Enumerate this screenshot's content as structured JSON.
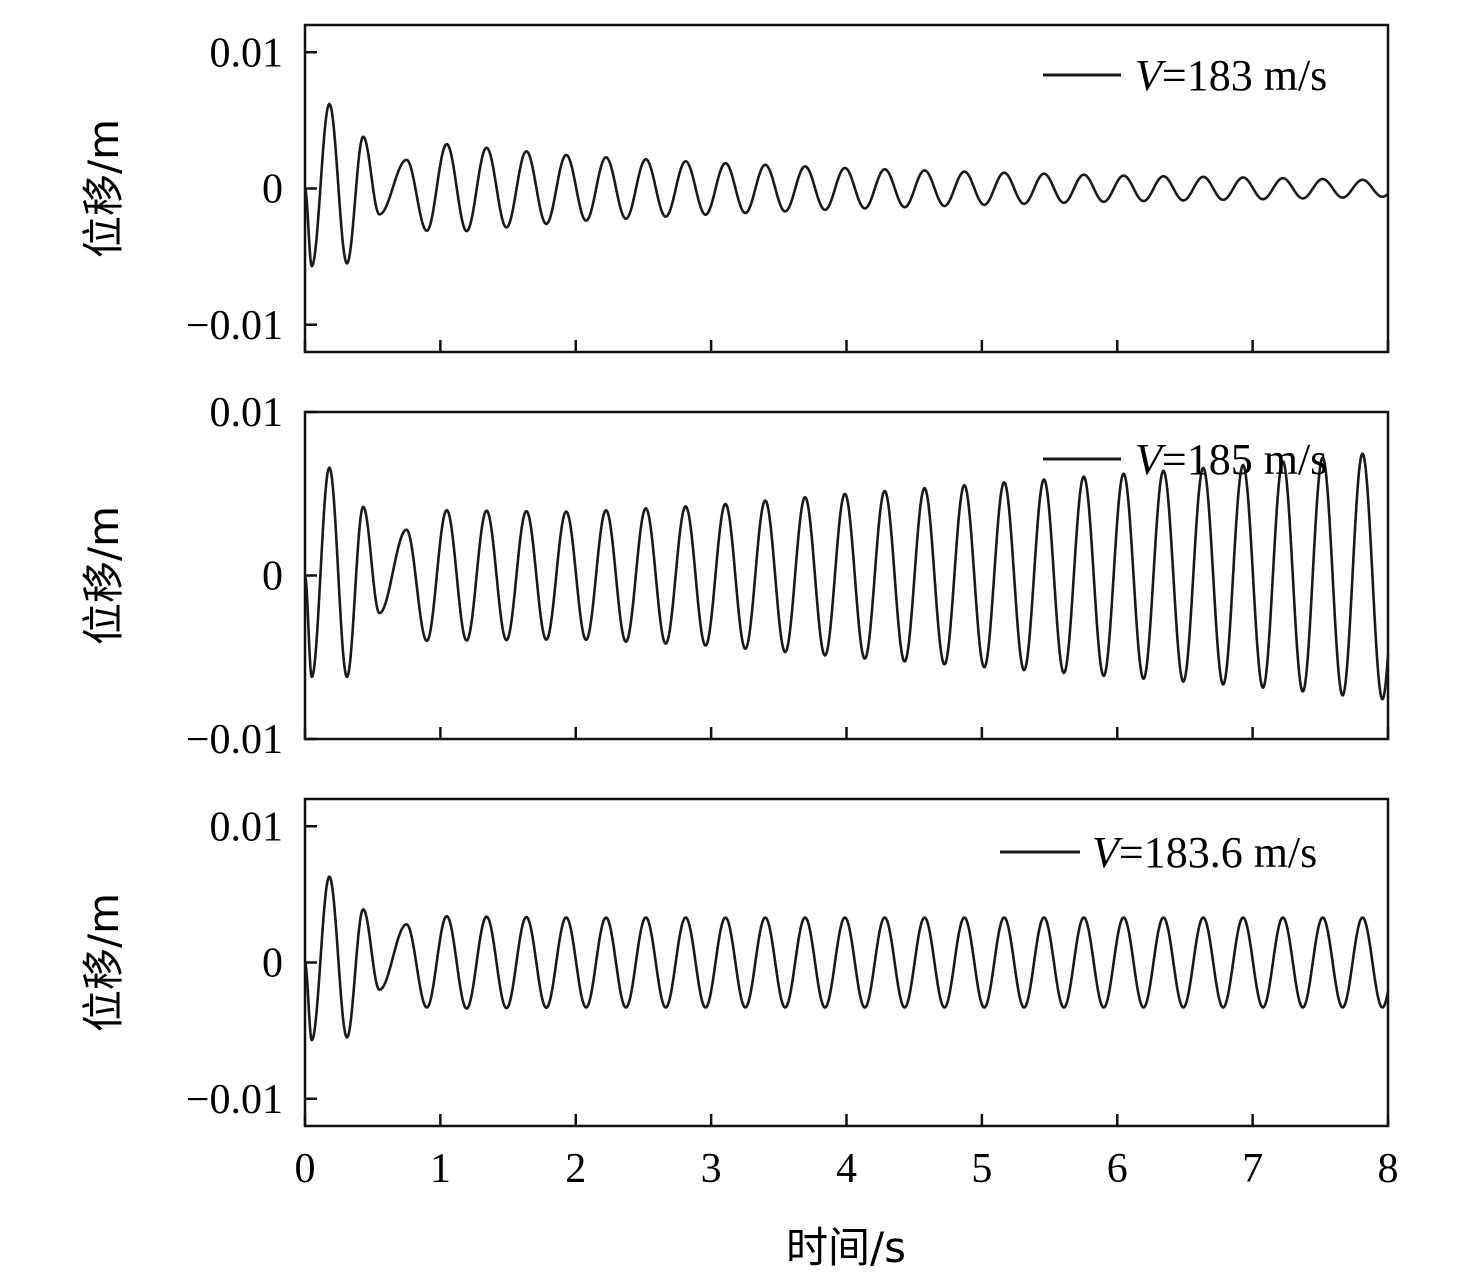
{
  "chart_data": [
    {
      "type": "line",
      "ylabel": "位移/m",
      "xlim": [
        0,
        8
      ],
      "ylim": [
        -0.012,
        0.012
      ],
      "yticks": [
        -0.01,
        0,
        0.01
      ],
      "ytick_labels": [
        "−0.01",
        "0",
        "0.01"
      ],
      "xticks": [
        0,
        1,
        2,
        3,
        4,
        5,
        6,
        7,
        8
      ],
      "xtick_labels": [],
      "legend_position": "top-right",
      "series": [
        {
          "legend_label": "=183 m/s",
          "legend_var": "V",
          "frequency_hz": 3.4,
          "transient": [
            [
              0.05,
              -0.0057
            ],
            [
              0.18,
              0.0062
            ],
            [
              0.31,
              -0.0055
            ],
            [
              0.43,
              0.0038
            ],
            [
              0.55,
              -0.0019
            ],
            [
              0.75,
              0.0021
            ],
            [
              0.9,
              -0.0031
            ]
          ],
          "envelope": [
            [
              1.0,
              0.0033
            ],
            [
              2.0,
              0.0024
            ],
            [
              3.0,
              0.0019
            ],
            [
              4.0,
              0.0015
            ],
            [
              5.0,
              0.0012
            ],
            [
              6.0,
              0.00095
            ],
            [
              7.0,
              0.0008
            ],
            [
              8.0,
              0.0006
            ]
          ]
        }
      ]
    },
    {
      "type": "line",
      "ylabel": "位移/m",
      "xlim": [
        0,
        8
      ],
      "ylim": [
        -0.01,
        0.01
      ],
      "yticks": [
        -0.01,
        0,
        0.01
      ],
      "ytick_labels": [
        "−0.01",
        "0",
        "0.01"
      ],
      "xticks": [
        0,
        1,
        2,
        3,
        4,
        5,
        6,
        7,
        8
      ],
      "xtick_labels": [],
      "legend_position": "top-right",
      "series": [
        {
          "legend_label": "=185 m/s",
          "legend_var": "V",
          "frequency_hz": 3.4,
          "transient": [
            [
              0.05,
              -0.0062
            ],
            [
              0.18,
              0.0066
            ],
            [
              0.31,
              -0.0062
            ],
            [
              0.43,
              0.0042
            ],
            [
              0.55,
              -0.0023
            ],
            [
              0.75,
              0.0028
            ],
            [
              0.9,
              -0.004
            ]
          ],
          "envelope": [
            [
              1.0,
              0.004
            ],
            [
              2.0,
              0.0039
            ],
            [
              3.0,
              0.0043
            ],
            [
              4.0,
              0.005
            ],
            [
              5.0,
              0.0056
            ],
            [
              6.0,
              0.0062
            ],
            [
              7.0,
              0.0068
            ],
            [
              8.0,
              0.0076
            ]
          ]
        }
      ]
    },
    {
      "type": "line",
      "xlabel": "时间/s",
      "ylabel": "位移/m",
      "xlim": [
        0,
        8
      ],
      "ylim": [
        -0.012,
        0.012
      ],
      "yticks": [
        -0.01,
        0,
        0.01
      ],
      "ytick_labels": [
        "−0.01",
        "0",
        "0.01"
      ],
      "xticks": [
        0,
        1,
        2,
        3,
        4,
        5,
        6,
        7,
        8
      ],
      "xtick_labels": [
        "0",
        "1",
        "2",
        "3",
        "4",
        "5",
        "6",
        "7",
        "8"
      ],
      "legend_position": "top-right",
      "series": [
        {
          "legend_label": "=183.6 m/s",
          "legend_var": "V",
          "frequency_hz": 3.4,
          "transient": [
            [
              0.05,
              -0.0057
            ],
            [
              0.18,
              0.0063
            ],
            [
              0.31,
              -0.0055
            ],
            [
              0.43,
              0.0039
            ],
            [
              0.55,
              -0.002
            ],
            [
              0.75,
              0.0028
            ],
            [
              0.9,
              -0.0033
            ]
          ],
          "envelope": [
            [
              1.0,
              0.0034
            ],
            [
              2.0,
              0.0033
            ],
            [
              3.0,
              0.0033
            ],
            [
              4.0,
              0.0033
            ],
            [
              5.0,
              0.0033
            ],
            [
              6.0,
              0.0033
            ],
            [
              7.0,
              0.0033
            ],
            [
              8.0,
              0.0033
            ]
          ]
        }
      ]
    }
  ]
}
